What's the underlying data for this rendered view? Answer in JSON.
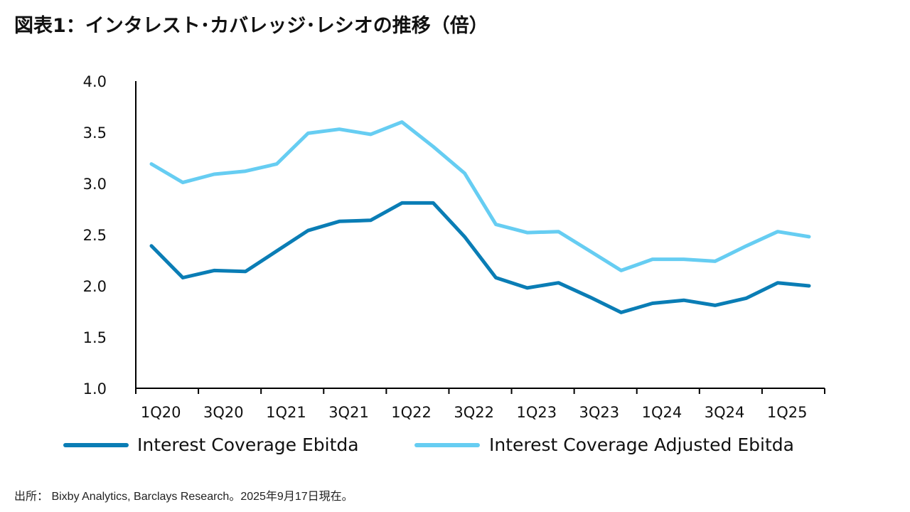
{
  "title": "図表1：インタレスト･カバレッジ･レシオの推移（倍）",
  "source": "出所： Bixby Analytics, Barclays Research。2025年9月17日現在。",
  "chart_data": {
    "type": "line",
    "x": [
      "1Q20",
      "2Q20",
      "3Q20",
      "4Q20",
      "1Q21",
      "2Q21",
      "3Q21",
      "4Q21",
      "1Q22",
      "2Q22",
      "3Q22",
      "4Q22",
      "1Q23",
      "2Q23",
      "3Q23",
      "4Q23",
      "1Q24",
      "2Q24",
      "3Q24",
      "4Q24",
      "1Q25",
      "2Q25"
    ],
    "x_tick_labels": [
      "1Q20",
      "3Q20",
      "1Q21",
      "3Q21",
      "1Q22",
      "3Q22",
      "1Q23",
      "3Q23",
      "1Q24",
      "3Q24",
      "1Q25"
    ],
    "y_tick_labels": [
      "4.0",
      "3.5",
      "3.0",
      "2.5",
      "2.0",
      "1.5",
      "1.0"
    ],
    "ylim": [
      1.0,
      4.0
    ],
    "series": [
      {
        "name": "Interest Coverage Ebitda",
        "color": "#0a7db5",
        "values": [
          2.39,
          2.08,
          2.15,
          2.14,
          2.34,
          2.54,
          2.63,
          2.64,
          2.81,
          2.81,
          2.48,
          2.08,
          1.98,
          2.03,
          1.89,
          1.74,
          1.83,
          1.86,
          1.81,
          1.88,
          2.03,
          2.0
        ]
      },
      {
        "name": "Interest Coverage Adjusted Ebitda",
        "color": "#66cdf2",
        "values": [
          3.19,
          3.01,
          3.09,
          3.12,
          3.19,
          3.49,
          3.53,
          3.48,
          3.6,
          3.36,
          3.1,
          2.6,
          2.52,
          2.53,
          2.34,
          2.15,
          2.26,
          2.26,
          2.24,
          2.39,
          2.53,
          2.48
        ]
      }
    ],
    "legend_position": "bottom"
  }
}
